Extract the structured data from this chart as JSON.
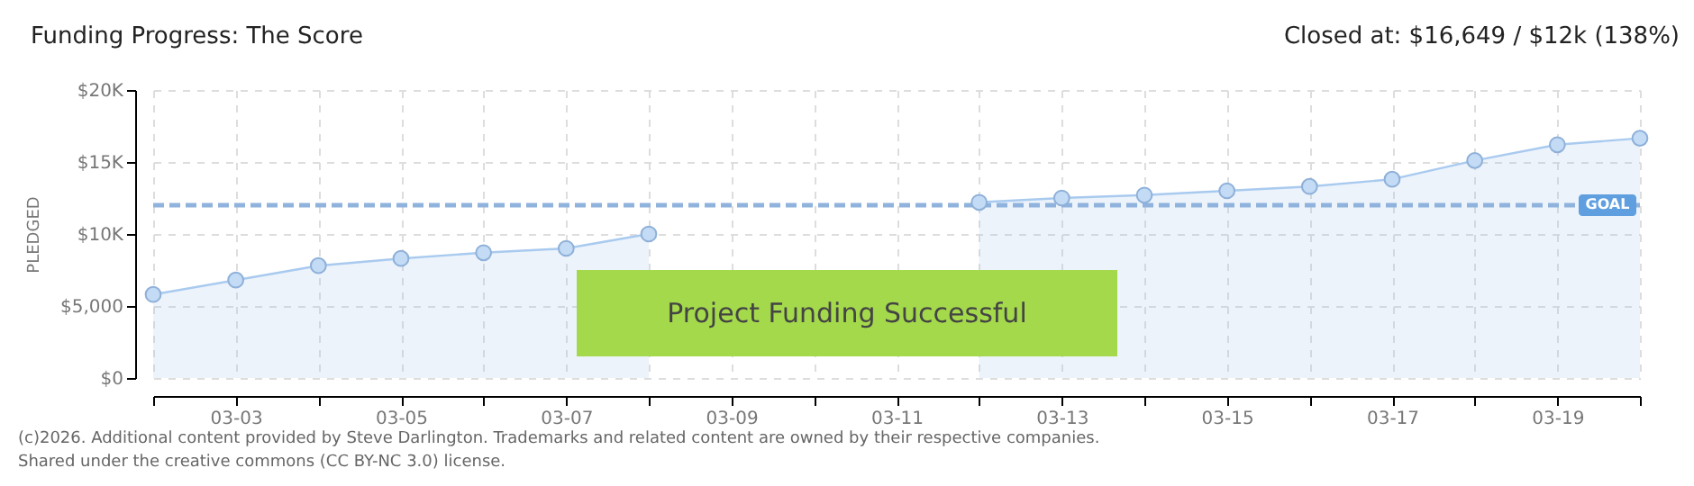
{
  "chart_data": {
    "type": "area",
    "title": "Funding Progress: The Score",
    "ylabel": "PLEDGED",
    "categories": [
      null,
      "03-03",
      null,
      "03-05",
      null,
      "03-07",
      null,
      "03-09",
      null,
      "03-11",
      null,
      "03-13",
      null,
      "03-15",
      null,
      "03-17",
      null,
      "03-19",
      null
    ],
    "series": [
      {
        "color": "#a9caef",
        "values": [
          5800,
          6800,
          7800,
          8300,
          8700,
          9000,
          10000,
          null,
          null,
          null,
          12200,
          12500,
          12700,
          13000,
          13300,
          13800,
          15100,
          16200,
          16649
        ]
      }
    ],
    "ylim": [
      0,
      20000
    ],
    "yticks": [
      {
        "value": 0,
        "label": "$0"
      },
      {
        "value": 5000,
        "label": "$5,000"
      },
      {
        "value": 10000,
        "label": "$10K"
      },
      {
        "value": 15000,
        "label": "$15K"
      },
      {
        "value": 20000,
        "label": "$20K"
      }
    ],
    "ref_lines": [
      {
        "axis": "y",
        "value": 12000,
        "label": "GOAL",
        "color": "#8fb3dc",
        "line_style": "dashed"
      }
    ],
    "annotations": [
      "Closed at:  $16,649 / $12k (138%)",
      "Project Funding Successful",
      "(c)2026. Additional content provided by Steve Darlington. Trademarks and related content are owned by their respective companies.",
      "Shared under the creative commons (CC BY-NC 3.0) license."
    ],
    "grid": true,
    "marker": "circle",
    "line_style": "solid"
  }
}
